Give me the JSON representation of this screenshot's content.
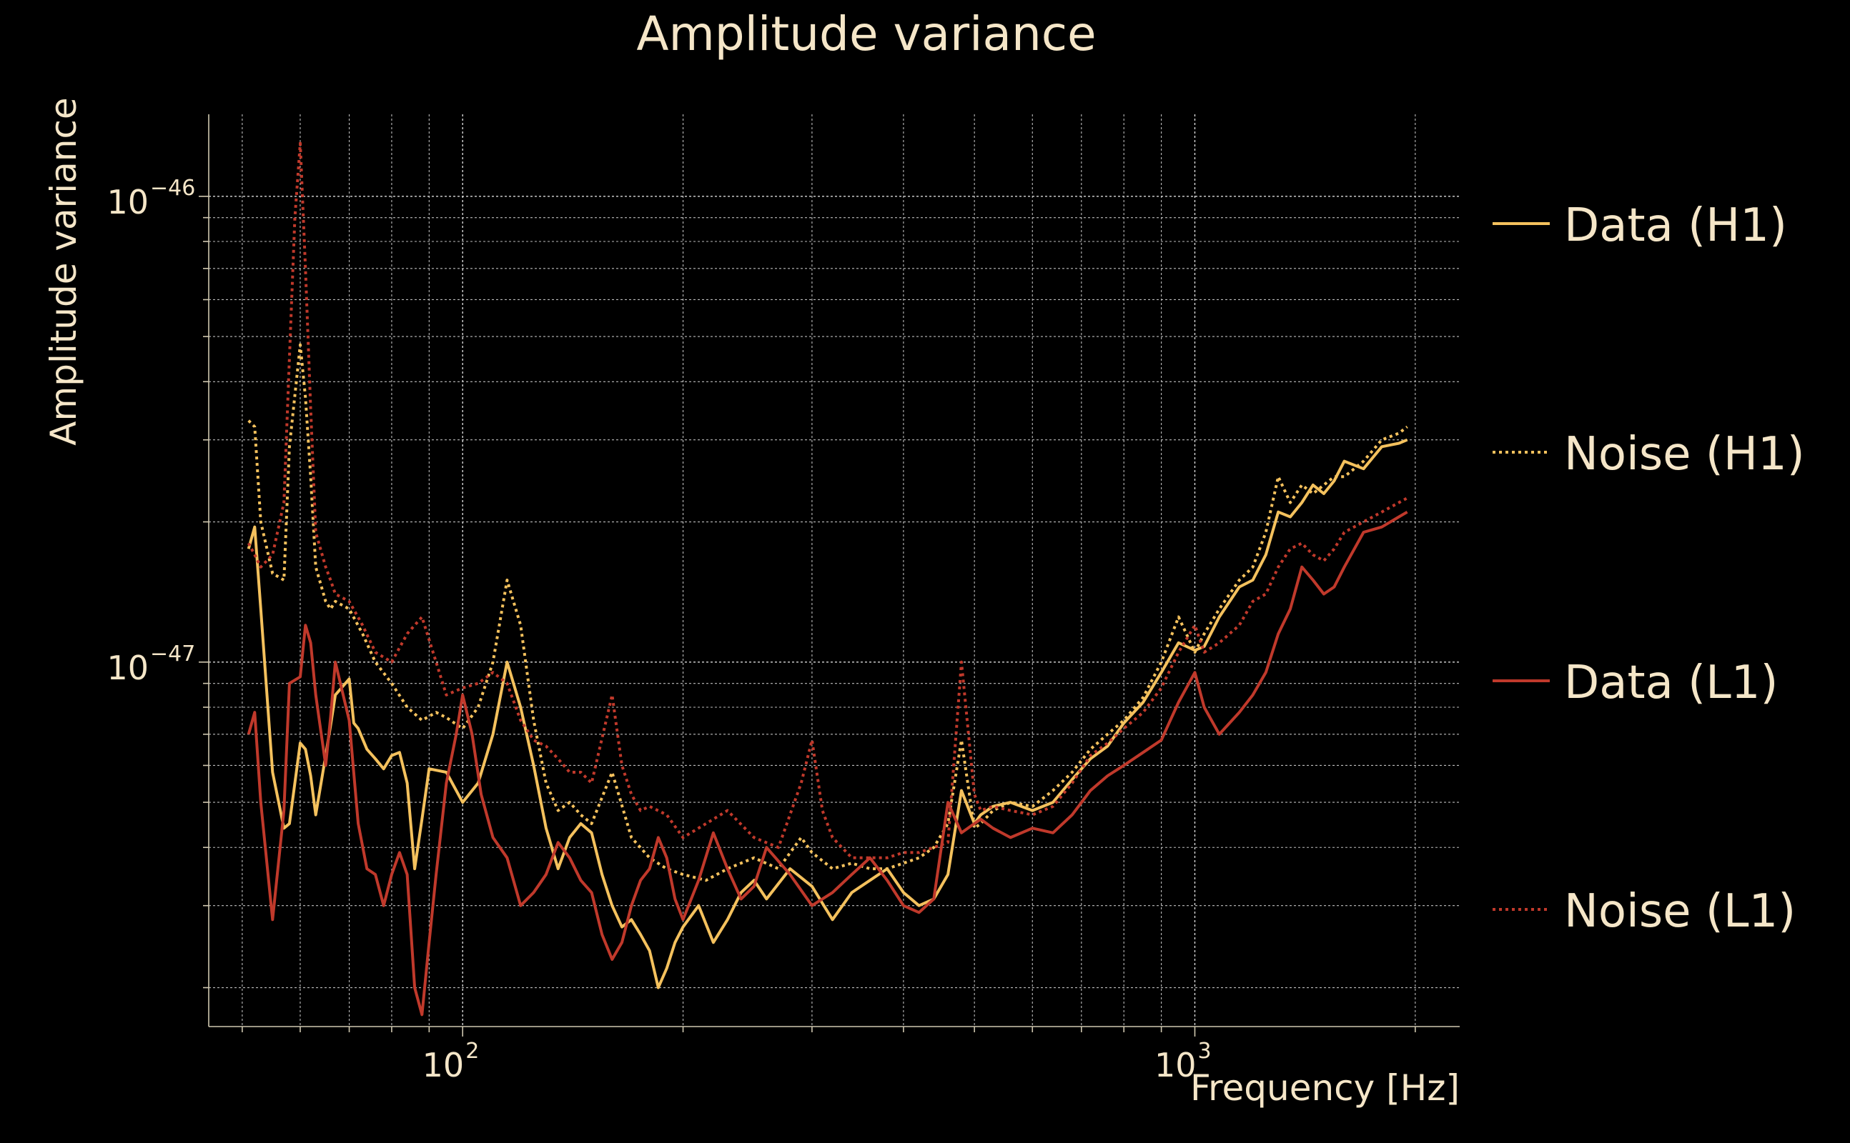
{
  "chart_data": {
    "type": "line",
    "title": "Amplitude variance",
    "xlabel": "Frequency [Hz]",
    "ylabel": "Amplitude variance",
    "xscale": "log",
    "yscale": "log",
    "xlim": [
      45,
      2300
    ],
    "ylim": [
      1.65e-48,
      1.5e-46
    ],
    "xticks": [
      {
        "base": "10",
        "exp": "2",
        "value": 100
      },
      {
        "base": "10",
        "exp": "3",
        "value": 1000
      }
    ],
    "yticks": [
      {
        "base": "10",
        "exp": "−46",
        "value": 1e-46
      },
      {
        "base": "10",
        "exp": "−47",
        "value": 1e-47
      }
    ],
    "grid": true,
    "legend_position": "right",
    "series": [
      {
        "name": "Data (H1)",
        "color": "#f4c15d",
        "style": "solid",
        "x": [
          51,
          52,
          53,
          55,
          57,
          58,
          60,
          61,
          62,
          63,
          65,
          66,
          67,
          70,
          71,
          72,
          74,
          76,
          78,
          80,
          82,
          84,
          86,
          88,
          90,
          95,
          100,
          105,
          110,
          115,
          120,
          125,
          130,
          135,
          140,
          145,
          150,
          155,
          160,
          165,
          170,
          175,
          180,
          185,
          190,
          195,
          200,
          210,
          220,
          230,
          240,
          250,
          260,
          280,
          300,
          320,
          340,
          360,
          380,
          400,
          420,
          440,
          460,
          480,
          500,
          510,
          530,
          560,
          600,
          640,
          680,
          720,
          760,
          800,
          850,
          900,
          950,
          1000,
          1030,
          1080,
          1150,
          1200,
          1250,
          1300,
          1350,
          1400,
          1450,
          1500,
          1550,
          1600,
          1700,
          1800,
          1900,
          1950
        ],
        "y": [
          1.75e-47,
          1.95e-47,
          1.3e-47,
          5.8e-48,
          4.4e-48,
          4.5e-48,
          6.7e-48,
          6.5e-48,
          5.7e-48,
          4.7e-48,
          6.3e-48,
          7.3e-48,
          8.5e-48,
          9.2e-48,
          7.4e-48,
          7.2e-48,
          6.5e-48,
          6.2e-48,
          5.9e-48,
          6.3e-48,
          6.4e-48,
          5.5e-48,
          3.6e-48,
          4.6e-48,
          5.9e-48,
          5.8e-48,
          5e-48,
          5.5e-48,
          7e-48,
          1e-47,
          8e-48,
          6e-48,
          4.4e-48,
          3.6e-48,
          4.2e-48,
          4.5e-48,
          4.3e-48,
          3.5e-48,
          3e-48,
          2.7e-48,
          2.8e-48,
          2.6e-48,
          2.4e-48,
          2e-48,
          2.2e-48,
          2.5e-48,
          2.7e-48,
          3e-48,
          2.5e-48,
          2.8e-48,
          3.2e-48,
          3.4e-48,
          3.1e-48,
          3.6e-48,
          3.3e-48,
          2.8e-48,
          3.2e-48,
          3.4e-48,
          3.6e-48,
          3.2e-48,
          3e-48,
          3.1e-48,
          3.5e-48,
          5.3e-48,
          4.5e-48,
          4.7e-48,
          4.9e-48,
          5e-48,
          4.8e-48,
          5e-48,
          5.6e-48,
          6.2e-48,
          6.6e-48,
          7.4e-48,
          8.2e-48,
          9.5e-48,
          1.1e-47,
          1.06e-47,
          1.08e-47,
          1.25e-47,
          1.45e-47,
          1.5e-47,
          1.7e-47,
          2.1e-47,
          2.05e-47,
          2.2e-47,
          2.4e-47,
          2.3e-47,
          2.45e-47,
          2.7e-47,
          2.6e-47,
          2.9e-47,
          2.95e-47,
          3e-47
        ]
      },
      {
        "name": "Noise (H1)",
        "color": "#f4c15d",
        "style": "dotted",
        "x": [
          51,
          52,
          53,
          55,
          57,
          58,
          60,
          61,
          62,
          63,
          65,
          66,
          67,
          70,
          73,
          76,
          80,
          84,
          88,
          92,
          95,
          100,
          105,
          110,
          115,
          120,
          125,
          130,
          135,
          140,
          145,
          150,
          160,
          170,
          180,
          190,
          200,
          215,
          230,
          250,
          270,
          290,
          300,
          320,
          340,
          360,
          380,
          400,
          420,
          440,
          460,
          480,
          500,
          510,
          530,
          560,
          600,
          640,
          680,
          720,
          760,
          800,
          850,
          900,
          950,
          1000,
          1030,
          1080,
          1150,
          1200,
          1250,
          1300,
          1350,
          1400,
          1450,
          1500,
          1550,
          1600,
          1700,
          1800,
          1900,
          1950
        ],
        "y": [
          3.3e-47,
          3.2e-47,
          2e-47,
          1.55e-47,
          1.5e-47,
          2.9e-47,
          4.8e-47,
          3.7e-47,
          2.5e-47,
          1.6e-47,
          1.35e-47,
          1.3e-47,
          1.35e-47,
          1.3e-47,
          1.15e-47,
          1e-47,
          9e-48,
          8e-48,
          7.5e-48,
          7.8e-48,
          7.6e-48,
          7.2e-48,
          8e-48,
          1e-47,
          1.5e-47,
          1.2e-47,
          7.5e-48,
          5.5e-48,
          4.8e-48,
          5e-48,
          4.7e-48,
          4.5e-48,
          5.8e-48,
          4.2e-48,
          3.8e-48,
          3.6e-48,
          3.5e-48,
          3.4e-48,
          3.6e-48,
          3.8e-48,
          3.6e-48,
          4.2e-48,
          3.9e-48,
          3.6e-48,
          3.7e-48,
          3.6e-48,
          3.6e-48,
          3.7e-48,
          3.8e-48,
          4e-48,
          4.5e-48,
          6.8e-48,
          4.4e-48,
          4.5e-48,
          4.8e-48,
          5e-48,
          4.9e-48,
          5.3e-48,
          5.8e-48,
          6.5e-48,
          7e-48,
          7.5e-48,
          8.4e-48,
          1e-47,
          1.25e-47,
          1.05e-47,
          1.15e-47,
          1.3e-47,
          1.5e-47,
          1.6e-47,
          1.9e-47,
          2.5e-47,
          2.2e-47,
          2.4e-47,
          2.3e-47,
          2.4e-47,
          2.5e-47,
          2.5e-47,
          2.7e-47,
          3e-47,
          3.1e-47,
          3.2e-47
        ]
      },
      {
        "name": "Data (L1)",
        "color": "#c0392b",
        "style": "solid",
        "x": [
          51,
          52,
          53,
          55,
          57,
          58,
          60,
          61,
          62,
          63,
          65,
          66,
          67,
          70,
          72,
          74,
          76,
          78,
          80,
          82,
          84,
          86,
          88,
          90,
          92,
          95,
          98,
          100,
          103,
          106,
          110,
          115,
          120,
          125,
          130,
          135,
          140,
          145,
          150,
          155,
          160,
          165,
          170,
          175,
          180,
          185,
          190,
          195,
          200,
          210,
          220,
          230,
          240,
          250,
          260,
          280,
          300,
          320,
          340,
          360,
          380,
          400,
          420,
          440,
          460,
          480,
          500,
          510,
          530,
          560,
          600,
          640,
          680,
          720,
          760,
          800,
          850,
          900,
          950,
          1000,
          1030,
          1080,
          1150,
          1200,
          1250,
          1300,
          1350,
          1400,
          1450,
          1500,
          1550,
          1600,
          1700,
          1800,
          1900,
          1950
        ],
        "y": [
          7e-48,
          7.8e-48,
          5e-48,
          2.8e-48,
          4.8e-48,
          9e-48,
          9.3e-48,
          1.2e-47,
          1.1e-47,
          8.5e-48,
          6e-48,
          7.6e-48,
          1e-47,
          7.5e-48,
          4.5e-48,
          3.6e-48,
          3.5e-48,
          3e-48,
          3.5e-48,
          3.9e-48,
          3.5e-48,
          2e-48,
          1.75e-48,
          2.5e-48,
          3.5e-48,
          5.5e-48,
          7e-48,
          8.5e-48,
          7e-48,
          5.2e-48,
          4.2e-48,
          3.8e-48,
          3e-48,
          3.2e-48,
          3.5e-48,
          4.1e-48,
          3.8e-48,
          3.4e-48,
          3.2e-48,
          2.6e-48,
          2.3e-48,
          2.5e-48,
          3e-48,
          3.4e-48,
          3.6e-48,
          4.2e-48,
          3.8e-48,
          3.1e-48,
          2.8e-48,
          3.4e-48,
          4.3e-48,
          3.6e-48,
          3.1e-48,
          3.3e-48,
          4e-48,
          3.5e-48,
          3e-48,
          3.2e-48,
          3.5e-48,
          3.8e-48,
          3.4e-48,
          3e-48,
          2.9e-48,
          3.1e-48,
          5e-48,
          4.3e-48,
          4.5e-48,
          4.6e-48,
          4.4e-48,
          4.2e-48,
          4.4e-48,
          4.3e-48,
          4.7e-48,
          5.3e-48,
          5.7e-48,
          6e-48,
          6.4e-48,
          6.8e-48,
          8.2e-48,
          9.5e-48,
          8e-48,
          7e-48,
          7.8e-48,
          8.5e-48,
          9.5e-48,
          1.15e-47,
          1.3e-47,
          1.6e-47,
          1.5e-47,
          1.4e-47,
          1.45e-47,
          1.6e-47,
          1.9e-47,
          1.95e-47,
          2.05e-47,
          2.1e-47
        ]
      },
      {
        "name": "Noise (L1)",
        "color": "#c0392b",
        "style": "dotted",
        "x": [
          51,
          52,
          53,
          55,
          57,
          58,
          59,
          60,
          61,
          62,
          63,
          65,
          66,
          67,
          70,
          73,
          76,
          80,
          84,
          88,
          92,
          95,
          100,
          105,
          110,
          115,
          120,
          125,
          130,
          135,
          140,
          145,
          150,
          160,
          165,
          170,
          175,
          180,
          190,
          200,
          215,
          230,
          250,
          270,
          290,
          300,
          310,
          320,
          340,
          360,
          380,
          400,
          420,
          440,
          460,
          480,
          500,
          510,
          530,
          560,
          600,
          640,
          680,
          720,
          760,
          800,
          850,
          900,
          950,
          1000,
          1030,
          1080,
          1150,
          1200,
          1250,
          1300,
          1350,
          1400,
          1450,
          1500,
          1550,
          1600,
          1700,
          1800,
          1900,
          1950
        ],
        "y": [
          1.8e-47,
          1.7e-47,
          1.6e-47,
          1.7e-47,
          2.2e-47,
          4.5e-47,
          9e-47,
          1.3e-46,
          7e-47,
          3.5e-47,
          1.9e-47,
          1.6e-47,
          1.5e-47,
          1.4e-47,
          1.35e-47,
          1.2e-47,
          1.05e-47,
          1e-47,
          1.15e-47,
          1.25e-47,
          1e-47,
          8.5e-48,
          8.8e-48,
          9e-48,
          9.5e-48,
          9e-48,
          7.5e-48,
          6.8e-48,
          6.6e-48,
          6.2e-48,
          5.8e-48,
          5.8e-48,
          5.5e-48,
          8.5e-48,
          6e-48,
          5.2e-48,
          4.8e-48,
          4.9e-48,
          4.7e-48,
          4.2e-48,
          4.5e-48,
          4.8e-48,
          4.2e-48,
          4e-48,
          5.5e-48,
          6.8e-48,
          4.8e-48,
          4.2e-48,
          3.8e-48,
          3.8e-48,
          3.8e-48,
          3.9e-48,
          3.9e-48,
          4e-48,
          4.1e-48,
          1e-47,
          5.2e-48,
          4.8e-48,
          4.9e-48,
          4.8e-48,
          4.7e-48,
          4.9e-48,
          5.5e-48,
          6.3e-48,
          6.7e-48,
          7.2e-48,
          7.8e-48,
          8.8e-48,
          1.05e-47,
          1.2e-47,
          1.05e-47,
          1.1e-47,
          1.2e-47,
          1.35e-47,
          1.4e-47,
          1.6e-47,
          1.75e-47,
          1.8e-47,
          1.7e-47,
          1.65e-47,
          1.75e-47,
          1.9e-47,
          2e-47,
          2.1e-47,
          2.2e-47,
          2.25e-47
        ]
      }
    ]
  }
}
